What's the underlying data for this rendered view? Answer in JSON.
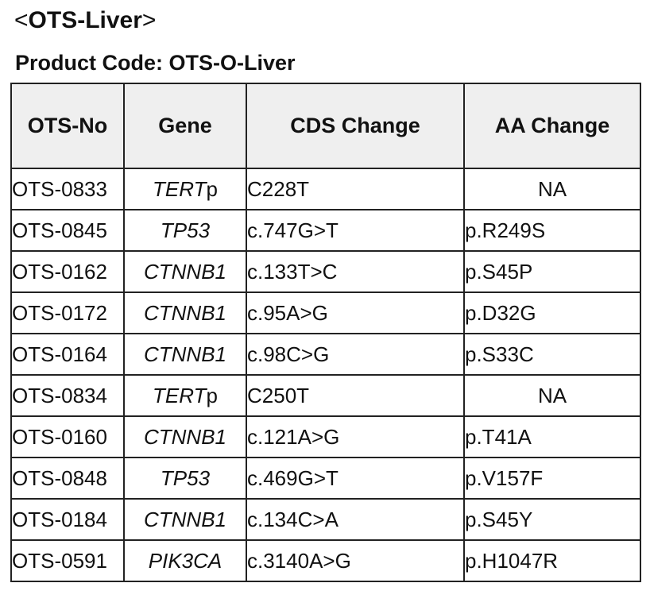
{
  "title": {
    "open_bracket": "<",
    "text": "OTS-Liver",
    "close_bracket": ">"
  },
  "product_code": "Product Code: OTS-O-Liver",
  "table": {
    "headers": [
      "OTS-No",
      "Gene",
      "CDS Change",
      "AA Change"
    ],
    "rows": [
      {
        "ots_no": "OTS-0833",
        "gene": "TERT",
        "gene_suffix": "p",
        "cds": "C228T",
        "aa": "NA"
      },
      {
        "ots_no": "OTS-0845",
        "gene": "TP53",
        "gene_suffix": "",
        "cds": "c.747G>T",
        "aa": "p.R249S"
      },
      {
        "ots_no": "OTS-0162",
        "gene": "CTNNB1",
        "gene_suffix": "",
        "cds": "c.133T>C",
        "aa": "p.S45P"
      },
      {
        "ots_no": "OTS-0172",
        "gene": "CTNNB1",
        "gene_suffix": "",
        "cds": "c.95A>G",
        "aa": "p.D32G"
      },
      {
        "ots_no": "OTS-0164",
        "gene": "CTNNB1",
        "gene_suffix": "",
        "cds": "c.98C>G",
        "aa": "p.S33C"
      },
      {
        "ots_no": "OTS-0834",
        "gene": "TERT",
        "gene_suffix": "p",
        "cds": "C250T",
        "aa": "NA"
      },
      {
        "ots_no": "OTS-0160",
        "gene": "CTNNB1",
        "gene_suffix": "",
        "cds": "c.121A>G",
        "aa": "p.T41A"
      },
      {
        "ots_no": "OTS-0848",
        "gene": "TP53",
        "gene_suffix": "",
        "cds": "c.469G>T",
        "aa": "p.V157F"
      },
      {
        "ots_no": "OTS-0184",
        "gene": "CTNNB1",
        "gene_suffix": "",
        "cds": "c.134C>A",
        "aa": "p.S45Y"
      },
      {
        "ots_no": "OTS-0591",
        "gene": "PIK3CA",
        "gene_suffix": "",
        "cds": "c.3140A>G",
        "aa": "p.H1047R"
      }
    ]
  }
}
